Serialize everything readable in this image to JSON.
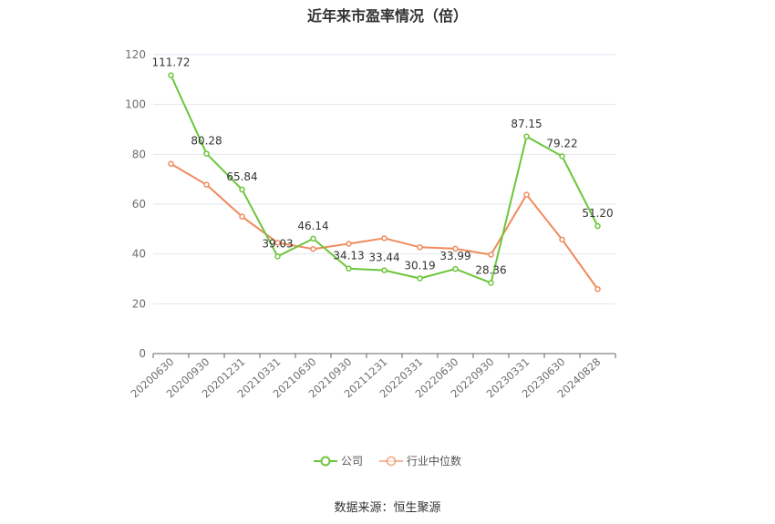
{
  "chart_data": {
    "type": "line",
    "title": "近年来市盈率情况（倍）",
    "categories": [
      "20200630",
      "20200930",
      "20201231",
      "20210331",
      "20210630",
      "20210930",
      "20211231",
      "20220331",
      "20220630",
      "20220930",
      "20230331",
      "20230630",
      "20240828"
    ],
    "ylim": [
      0,
      120
    ],
    "yticks": [
      0,
      20,
      40,
      60,
      80,
      100,
      120
    ],
    "grid": true,
    "legend_position": "bottom",
    "series": [
      {
        "name": "公司",
        "color": "#6cc63a",
        "values": [
          111.72,
          80.28,
          65.84,
          39.03,
          46.14,
          34.13,
          33.44,
          30.19,
          33.99,
          28.36,
          87.15,
          79.22,
          51.2
        ],
        "labels": [
          "111.72",
          "80.28",
          "65.84",
          "39.03",
          "46.14",
          "34.13",
          "33.44",
          "30.19",
          "33.99",
          "28.36",
          "87.15",
          "79.22",
          "51.20"
        ]
      },
      {
        "name": "行业中位数",
        "color": "#f08a5d",
        "values": [
          76.2,
          67.8,
          55.0,
          44.5,
          42.0,
          44.1,
          46.3,
          42.7,
          42.1,
          39.7,
          63.8,
          45.8,
          25.9
        ]
      }
    ]
  },
  "source": "数据来源：恒生聚源"
}
